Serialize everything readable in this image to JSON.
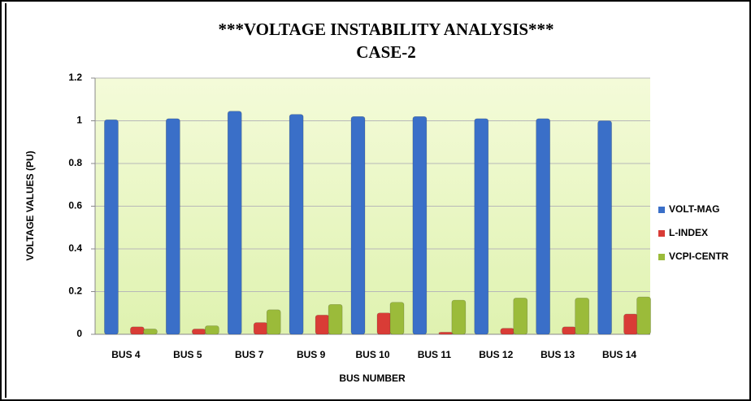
{
  "chart_data": {
    "type": "bar",
    "title": "***VOLTAGE INSTABILITY ANALYSIS***",
    "subtitle": "CASE-2",
    "xlabel": "BUS NUMBER",
    "ylabel": "VOLTAGE VALUES (PU)",
    "categories": [
      "BUS 4",
      "BUS 5",
      "BUS 7",
      "BUS 9",
      "BUS 10",
      "BUS 11",
      "BUS 12",
      "BUS 13",
      "BUS 14"
    ],
    "series": [
      {
        "name": "VOLT-MAG",
        "color": "#3a6fc8",
        "values": [
          1.005,
          1.01,
          1.045,
          1.03,
          1.02,
          1.02,
          1.01,
          1.01,
          1.0
        ]
      },
      {
        "name": "L-INDEX",
        "color": "#d93c36",
        "values": [
          0.035,
          0.025,
          0.055,
          0.09,
          0.1,
          0.01,
          0.028,
          0.035,
          0.095
        ]
      },
      {
        "name": "VCPI-CENTR",
        "color": "#9bbb3a",
        "values": [
          0.025,
          0.04,
          0.115,
          0.14,
          0.15,
          0.16,
          0.17,
          0.17,
          0.175
        ]
      }
    ],
    "ylim": [
      0,
      1.2
    ],
    "yticks": [
      0,
      0.2,
      0.4,
      0.6,
      0.8,
      1,
      1.2
    ],
    "grid": true,
    "legend": "right"
  }
}
